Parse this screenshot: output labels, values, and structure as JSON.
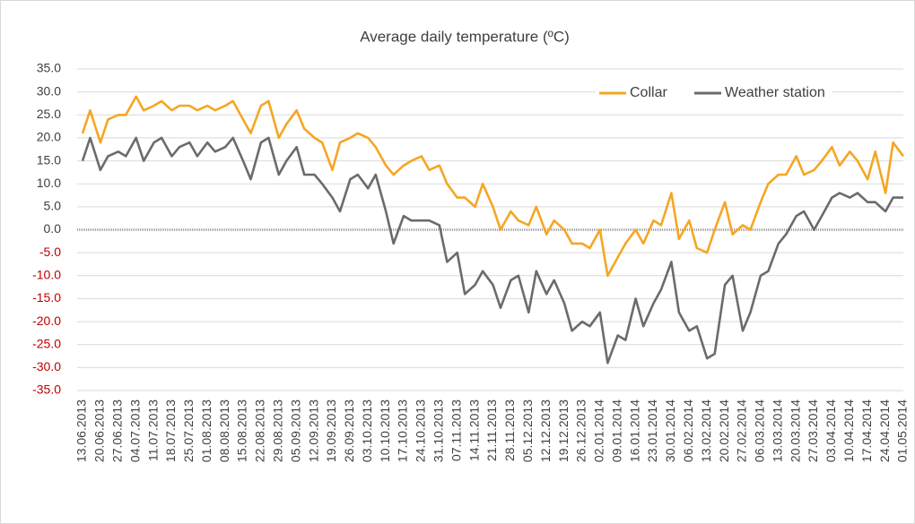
{
  "chart_data": {
    "type": "line",
    "title": "Average daily temperature (ºC)",
    "x": [
      "13.06.2013",
      "16.06.2013",
      "20.06.2013",
      "23.06.2013",
      "27.06.2013",
      "30.06.2013",
      "04.07.2013",
      "07.07.2013",
      "11.07.2013",
      "14.07.2013",
      "18.07.2013",
      "21.07.2013",
      "25.07.2013",
      "28.07.2013",
      "01.08.2013",
      "04.08.2013",
      "08.08.2013",
      "11.08.2013",
      "15.08.2013",
      "18.08.2013",
      "22.08.2013",
      "25.08.2013",
      "29.08.2013",
      "01.09.2013",
      "05.09.2013",
      "08.09.2013",
      "12.09.2013",
      "15.09.2013",
      "19.09.2013",
      "22.09.2013",
      "26.09.2013",
      "29.09.2013",
      "03.10.2013",
      "06.10.2013",
      "10.10.2013",
      "13.10.2013",
      "17.10.2013",
      "20.10.2013",
      "24.10.2013",
      "27.10.2013",
      "31.10.2013",
      "03.11.2013",
      "07.11.2013",
      "10.11.2013",
      "14.11.2013",
      "17.11.2013",
      "21.11.2013",
      "24.11.2013",
      "28.11.2013",
      "01.12.2013",
      "05.12.2013",
      "08.12.2013",
      "12.12.2013",
      "15.12.2013",
      "19.12.2013",
      "22.12.2013",
      "26.12.2013",
      "29.12.2013",
      "02.01.2014",
      "05.01.2014",
      "09.01.2014",
      "12.01.2014",
      "16.01.2014",
      "19.01.2014",
      "23.01.2014",
      "26.01.2014",
      "30.01.2014",
      "02.02.2014",
      "06.02.2014",
      "09.02.2014",
      "13.02.2014",
      "16.02.2014",
      "20.02.2014",
      "23.02.2014",
      "27.02.2014",
      "02.03.2014",
      "06.03.2014",
      "09.03.2014",
      "13.03.2014",
      "16.03.2014",
      "20.03.2014",
      "23.03.2014",
      "27.03.2014",
      "30.03.2014",
      "03.04.2014",
      "06.04.2014",
      "10.04.2014",
      "13.04.2014",
      "17.04.2014",
      "20.04.2014",
      "24.04.2014",
      "27.04.2014",
      "01.05.2014"
    ],
    "series": [
      {
        "name": "Collar",
        "color": "#f5a623",
        "values": [
          21,
          26,
          19,
          24,
          25,
          25,
          29,
          26,
          27,
          28,
          26,
          27,
          27,
          26,
          27,
          26,
          27,
          28,
          24,
          21,
          27,
          28,
          20,
          23,
          26,
          22,
          20,
          19,
          13,
          19,
          20,
          21,
          20,
          18,
          14,
          12,
          14,
          15,
          16,
          13,
          14,
          10,
          7,
          7,
          5,
          10,
          5,
          0,
          4,
          2,
          1,
          5,
          -1,
          2,
          0,
          -3,
          -3,
          -4,
          0,
          -10,
          -6,
          -3,
          0,
          -3,
          2,
          1,
          8,
          -2,
          2,
          -4,
          -5,
          0,
          6,
          -1,
          1,
          0,
          6,
          10,
          12,
          12,
          16,
          12,
          13,
          15,
          18,
          14,
          17,
          15,
          11,
          17,
          8,
          19,
          16
        ]
      },
      {
        "name": "Weather station",
        "color": "#6b6b6b",
        "values": [
          15,
          20,
          13,
          16,
          17,
          16,
          20,
          15,
          19,
          20,
          16,
          18,
          19,
          16,
          19,
          17,
          18,
          20,
          15,
          11,
          19,
          20,
          12,
          15,
          18,
          12,
          12,
          10,
          7,
          4,
          11,
          12,
          9,
          12,
          4,
          -3,
          3,
          2,
          2,
          2,
          1,
          -7,
          -5,
          -14,
          -12,
          -9,
          -12,
          -17,
          -11,
          -10,
          -18,
          -9,
          -14,
          -11,
          -16,
          -22,
          -20,
          -21,
          -18,
          -29,
          -23,
          -24,
          -15,
          -21,
          -16,
          -13,
          -7,
          -18,
          -22,
          -21,
          -28,
          -27,
          -12,
          -10,
          -22,
          -18,
          -10,
          -9,
          -3,
          -1,
          3,
          4,
          0,
          3,
          7,
          8,
          7,
          8,
          6,
          6,
          4,
          7,
          7
        ]
      }
    ],
    "xlim": [
      "13.06.2013",
      "01.05.2014"
    ],
    "xticks": [
      "13.06.2013",
      "20.06.2013",
      "27.06.2013",
      "04.07.2013",
      "11.07.2013",
      "18.07.2013",
      "25.07.2013",
      "01.08.2013",
      "08.08.2013",
      "15.08.2013",
      "22.08.2013",
      "29.08.2013",
      "05.09.2013",
      "12.09.2013",
      "19.09.2013",
      "26.09.2013",
      "03.10.2013",
      "10.10.2013",
      "17.10.2013",
      "24.10.2013",
      "31.10.2013",
      "07.11.2013",
      "14.11.2013",
      "21.11.2013",
      "28.11.2013",
      "05.12.2013",
      "12.12.2013",
      "19.12.2013",
      "26.12.2013",
      "02.01.2014",
      "09.01.2014",
      "16.01.2014",
      "23.01.2014",
      "30.01.2014",
      "06.02.2014",
      "13.02.2014",
      "20.02.2014",
      "27.02.2014",
      "06.03.2014",
      "13.03.2014",
      "20.03.2014",
      "27.03.2014",
      "03.04.2014",
      "10.04.2014",
      "17.04.2014",
      "24.04.2014",
      "01.05.2014"
    ],
    "ylim": [
      -35,
      35
    ],
    "yticks": [
      {
        "value": -35,
        "label": "-35.0"
      },
      {
        "value": -30,
        "label": "-30.0"
      },
      {
        "value": -25,
        "label": "-25.0"
      },
      {
        "value": -20,
        "label": "-20.0"
      },
      {
        "value": -15,
        "label": "-15.0"
      },
      {
        "value": -10,
        "label": "-10.0"
      },
      {
        "value": -5,
        "label": "-5.0"
      },
      {
        "value": 0,
        "label": "0.0"
      },
      {
        "value": 5,
        "label": "5.0"
      },
      {
        "value": 10,
        "label": "10.0"
      },
      {
        "value": 15,
        "label": "15.0"
      },
      {
        "value": 20,
        "label": "20.0"
      },
      {
        "value": 25,
        "label": "25.0"
      },
      {
        "value": 30,
        "label": "30.0"
      },
      {
        "value": 35,
        "label": "35.0"
      }
    ],
    "grid": true,
    "legend": "upper right",
    "negative_tick_color": "#c00000"
  }
}
